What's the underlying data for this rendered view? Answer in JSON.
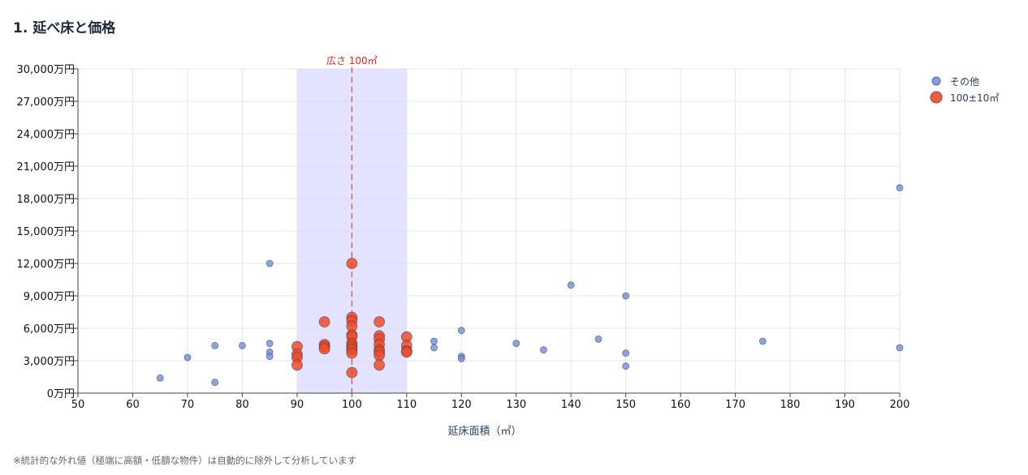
{
  "section": {
    "title": "1. 延べ床と価格"
  },
  "footnote": "※統計的な外れ値（極端に高額・低額な物件）は自動的に除外して分析しています",
  "colors": {
    "other": "#6f8fe4",
    "target": "#ef4b2b",
    "band": "#dcdcff",
    "refline": "#e0463c",
    "refLabel": "#e8231d"
  },
  "chart_data": {
    "type": "scatter",
    "xlabel": "延床面積（㎡）",
    "ylabel": "",
    "xlim": [
      50,
      200
    ],
    "ylim": [
      0,
      30000
    ],
    "xticks": [
      50,
      60,
      70,
      80,
      90,
      100,
      110,
      120,
      130,
      140,
      150,
      160,
      170,
      180,
      190,
      200
    ],
    "yticks": [
      0,
      3000,
      6000,
      9000,
      12000,
      15000,
      18000,
      21000,
      24000,
      27000,
      30000
    ],
    "ytick_labels": [
      "0万円",
      "3,000万円",
      "6,000万円",
      "9,000万円",
      "12,000万円",
      "15,000万円",
      "18,000万円",
      "21,000万円",
      "24,000万円",
      "27,000万円",
      "30,000万円"
    ],
    "grid": true,
    "legend_position": "top-right",
    "highlight_band": {
      "x0": 90,
      "x1": 110
    },
    "reference_line": {
      "x": 100,
      "label": "広さ 100㎡"
    },
    "series": [
      {
        "name": "その他",
        "points": [
          [
            65,
            1400
          ],
          [
            70,
            3300
          ],
          [
            75,
            4400
          ],
          [
            75,
            1000
          ],
          [
            80,
            4400
          ],
          [
            85,
            12000
          ],
          [
            85,
            4600
          ],
          [
            85,
            3800
          ],
          [
            85,
            3400
          ],
          [
            115,
            4800
          ],
          [
            115,
            4200
          ],
          [
            120,
            5800
          ],
          [
            120,
            3400
          ],
          [
            120,
            3200
          ],
          [
            130,
            4600
          ],
          [
            135,
            4000
          ],
          [
            140,
            10000
          ],
          [
            145,
            5000
          ],
          [
            150,
            9000
          ],
          [
            150,
            3700
          ],
          [
            150,
            2500
          ],
          [
            175,
            4800
          ],
          [
            200,
            19000
          ],
          [
            200,
            4200
          ]
        ]
      },
      {
        "name": "100±10㎡",
        "points": [
          [
            90,
            4300
          ],
          [
            90,
            3600
          ],
          [
            90,
            3300
          ],
          [
            90,
            2600
          ],
          [
            95,
            6600
          ],
          [
            95,
            4500
          ],
          [
            95,
            4300
          ],
          [
            95,
            4100
          ],
          [
            100,
            12000
          ],
          [
            100,
            7000
          ],
          [
            100,
            6700
          ],
          [
            100,
            6200
          ],
          [
            100,
            5400
          ],
          [
            100,
            5200
          ],
          [
            100,
            4600
          ],
          [
            100,
            4400
          ],
          [
            100,
            4200
          ],
          [
            100,
            4000
          ],
          [
            100,
            3700
          ],
          [
            100,
            1900
          ],
          [
            105,
            6600
          ],
          [
            105,
            5300
          ],
          [
            105,
            5000
          ],
          [
            105,
            4500
          ],
          [
            105,
            4000
          ],
          [
            105,
            3800
          ],
          [
            105,
            3500
          ],
          [
            105,
            2600
          ],
          [
            110,
            5200
          ],
          [
            110,
            4400
          ],
          [
            110,
            3900
          ],
          [
            110,
            3800
          ]
        ]
      }
    ]
  }
}
